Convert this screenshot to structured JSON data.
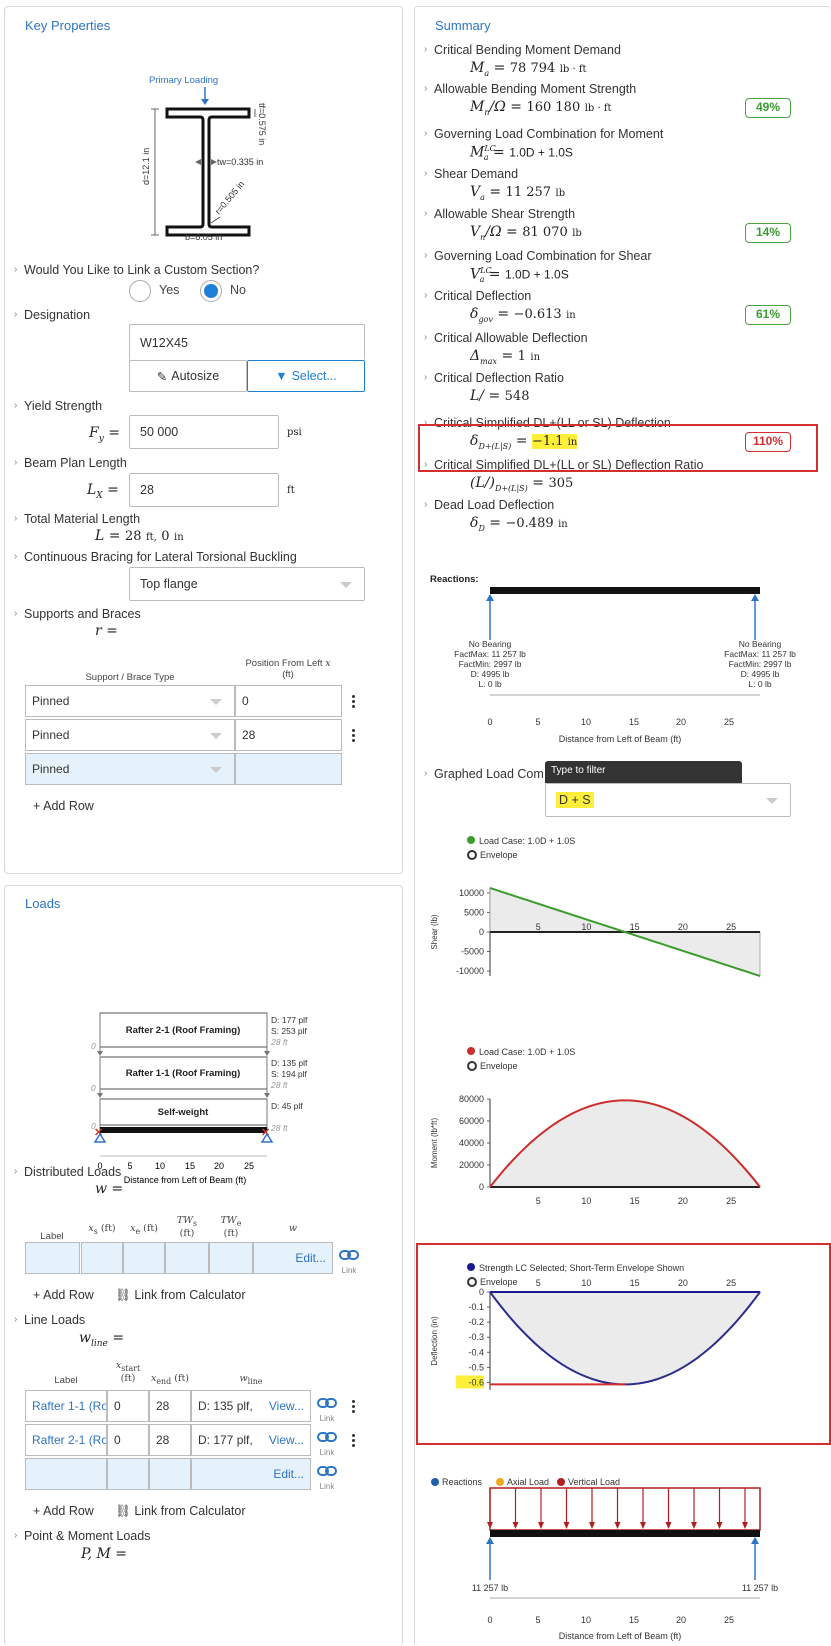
{
  "key_properties": {
    "title": "Key Properties",
    "section_diagram": {
      "primary_loading": "Primary Loading",
      "tf": "tf=0.575 in",
      "tw": "tw=0.335 in",
      "r": "r=0.505 in",
      "d": "d=12.1 in",
      "b": "b=8.05 in"
    },
    "link_custom": {
      "label": "Would You Like to Link a Custom Section?",
      "yes": "Yes",
      "no": "No",
      "selected": "No"
    },
    "designation": {
      "label": "Designation",
      "value": "W12X45",
      "autosize": "Autosize",
      "select": "Select..."
    },
    "yield_strength": {
      "label": "Yield Strength",
      "symbol": "F",
      "sub": "y",
      "value": "50 000",
      "unit": "psi"
    },
    "plan_length": {
      "label": "Beam Plan Length",
      "symbol": "L",
      "sub": "X",
      "value": "28",
      "unit": "ft"
    },
    "material_length": {
      "label": "Total Material Length",
      "symbol": "L",
      "value": "28",
      "u1": "ft,",
      "value2": "0",
      "u2": "in"
    },
    "bracing": {
      "label": "Continuous Bracing for Lateral Torsional Buckling",
      "value": "Top flange"
    },
    "supports": {
      "label": "Supports and Braces",
      "symbol": "r",
      "col_type": "Support / Brace Type",
      "col_pos": "Position From Left",
      "col_pos_var": "x",
      "col_pos_unit": "(ft)",
      "rows": [
        {
          "type": "Pinned",
          "pos": "0"
        },
        {
          "type": "Pinned",
          "pos": "28"
        },
        {
          "type": "Pinned",
          "pos": ""
        }
      ],
      "add_row": "Add Row"
    }
  },
  "loads": {
    "title": "Loads",
    "diagram": {
      "bars": [
        {
          "name": "Rafter 2-1 (Roof Framing)",
          "d": "D: 177 plf",
          "s": "S: 253 plf",
          "len": "28 ft",
          "start": "0"
        },
        {
          "name": "Rafter 1-1 (Roof Framing)",
          "d": "D: 135 plf",
          "s": "S: 194 plf",
          "len": "28 ft",
          "start": "0"
        },
        {
          "name": "Self-weight",
          "d": "D: 45 plf",
          "s": "",
          "len": "28 ft",
          "start": "0"
        }
      ],
      "ticks": [
        "0",
        "5",
        "10",
        "15",
        "20",
        "25"
      ],
      "xlabel": "Distance from Left of Beam (ft)"
    },
    "distributed": {
      "label": "Distributed Loads",
      "symbol": "w",
      "headers": [
        "Label",
        "x",
        "x",
        "TW",
        "TW",
        "w"
      ],
      "subs": [
        "",
        "s",
        "e",
        "s",
        "e",
        ""
      ],
      "units": [
        "",
        "(ft)",
        "(ft)",
        "(ft)",
        "(ft)",
        ""
      ],
      "edit": "Edit...",
      "link": "Link",
      "add_row": "Add Row",
      "calc": "Link from Calculator"
    },
    "line": {
      "label": "Line Loads",
      "symbol": "w",
      "sub": "line",
      "headers": [
        "Label",
        "x",
        "x",
        "w"
      ],
      "subs": [
        "",
        "start",
        "end",
        "line"
      ],
      "units": [
        "",
        "(ft)",
        "(ft)",
        ""
      ],
      "rows": [
        {
          "label": "Rafter 1-1 (Ro",
          "xs": "0",
          "xe": "28",
          "w": "D: 135 plf,",
          "action": "View..."
        },
        {
          "label": "Rafter 2-1 (Ro",
          "xs": "0",
          "xe": "28",
          "w": "D: 177 plf,",
          "action": "View..."
        }
      ],
      "edit": "Edit...",
      "link": "Link",
      "add_row": "Add Row",
      "calc": "Link from Calculator"
    },
    "point": {
      "label": "Point & Moment Loads",
      "symbol": "P, M"
    }
  },
  "summary": {
    "title": "Summary",
    "items": [
      {
        "label": "Critical Bending Moment Demand",
        "lhs": "M",
        "sub": "a",
        "sup": "",
        "val": "78 794",
        "unit": "lb · ft",
        "pct": "",
        "pct_color": ""
      },
      {
        "label": "Allowable Bending Moment Strength",
        "lhs": "M",
        "sub": "n",
        "sup": "",
        "extra": "/Ω",
        "val": "160 180",
        "unit": "lb · ft",
        "pct": "49%",
        "pct_color": "green"
      },
      {
        "label": "Governing Load Combination for Moment",
        "lhs": "M",
        "sub": "a",
        "sup": "LC",
        "val": "1.0D + 1.0S",
        "unit": "",
        "pct": "",
        "pct_color": ""
      },
      {
        "label": "Shear Demand",
        "lhs": "V",
        "sub": "a",
        "sup": "",
        "val": "11 257",
        "unit": "lb",
        "pct": "",
        "pct_color": ""
      },
      {
        "label": "Allowable Shear Strength",
        "lhs": "V",
        "sub": "n",
        "sup": "",
        "extra": "/Ω",
        "val": "81 070",
        "unit": "lb",
        "pct": "14%",
        "pct_color": "green"
      },
      {
        "label": "Governing Load Combination for Shear",
        "lhs": "V",
        "sub": "a",
        "sup": "LC",
        "val": "1.0D + 1.0S",
        "unit": "",
        "pct": "",
        "pct_color": ""
      },
      {
        "label": "Critical Deflection",
        "lhs": "δ",
        "sub": "gov",
        "sup": "",
        "val": "−0.613",
        "unit": "in",
        "pct": "61%",
        "pct_color": "green"
      },
      {
        "label": "Critical Allowable Deflection",
        "lhs": "Δ",
        "sub": "max",
        "sup": "",
        "val": "1",
        "unit": "in",
        "pct": "",
        "pct_color": ""
      },
      {
        "label": "Critical Deflection Ratio",
        "lhs": "L",
        "sub": "",
        "sup": "",
        "extra": "/",
        "val": "548",
        "unit": "",
        "pct": "",
        "pct_color": ""
      },
      {
        "label": "Critical Simplified DL+(LL or SL) Deflection",
        "lhs": "δ",
        "sub": "D+(L|S)",
        "sup": "",
        "val": "−1.1",
        "unit": "in",
        "pct": "110%",
        "pct_color": "red"
      },
      {
        "label": "Critical Simplified DL+(LL or SL) Deflection Ratio",
        "lhs": "(L/)",
        "sub": "D+(L|S)",
        "sup": "",
        "val": "305",
        "unit": "",
        "pct": "",
        "pct_color": ""
      },
      {
        "label": "Dead Load Deflection",
        "lhs": "δ",
        "sub": "D",
        "sup": "",
        "val": "−0.489",
        "unit": "in",
        "pct": "",
        "pct_color": ""
      }
    ],
    "reactions": {
      "title": "Reactions:",
      "left": [
        "No Bearing",
        "FactMax: 11 257 lb",
        "FactMin: 2997 lb",
        "D: 4995 lb",
        "L: 0 lb"
      ],
      "right": [
        "No Bearing",
        "FactMax: 11 257 lb",
        "FactMin: 2997 lb",
        "D: 4995 lb",
        "L: 0 lb"
      ],
      "ticks": [
        "0",
        "5",
        "10",
        "15",
        "20",
        "25"
      ],
      "xlabel": "Distance from Left of Beam (ft)"
    },
    "graphed": {
      "label": "Graphed Load Com",
      "tooltip": "Type to filter",
      "value": "D + S"
    }
  },
  "chart_data": [
    {
      "type": "line",
      "legend": [
        "Load Case: 1.0D + 1.0S",
        "Envelope"
      ],
      "ylabel": "Shear (lb)",
      "xlabel": "",
      "x": [
        0,
        28
      ],
      "series": [
        {
          "name": "Load Case: 1.0D + 1.0S",
          "values": [
            11257,
            -11257
          ]
        }
      ],
      "yticks": [
        "10000",
        "5000",
        "0",
        "-5000",
        "-10000"
      ],
      "xticks": [
        "5",
        "10",
        "15",
        "20",
        "25"
      ],
      "ylim": [
        -11257,
        11257
      ],
      "color": "#3a9c2a"
    },
    {
      "type": "line",
      "legend": [
        "Load Case: 1.0D + 1.0S",
        "Envelope"
      ],
      "ylabel": "Moment (lb*ft)",
      "xlabel": "",
      "x": [
        0,
        14,
        28
      ],
      "series": [
        {
          "name": "Load Case: 1.0D + 1.0S",
          "values": [
            0,
            78794,
            0
          ]
        }
      ],
      "yticks": [
        "80000",
        "60000",
        "40000",
        "20000",
        "0"
      ],
      "xticks": [
        "5",
        "10",
        "15",
        "20",
        "25"
      ],
      "ylim": [
        0,
        80000
      ],
      "color": "#cc2d2d"
    },
    {
      "type": "line",
      "legend": [
        "Strength LC Selected; Short-Term Envelope Shown",
        "Envelope"
      ],
      "ylabel": "Deflection (in)",
      "xlabel": "",
      "x": [
        0,
        14,
        28
      ],
      "series": [
        {
          "name": "Envelope",
          "values": [
            0,
            -0.613,
            0
          ]
        }
      ],
      "yticks": [
        "0",
        "-0.1",
        "-0.2",
        "-0.3",
        "-0.4",
        "-0.5",
        "-0.6"
      ],
      "xticks": [
        "5",
        "10",
        "15",
        "20",
        "25"
      ],
      "highlight": "-0.6",
      "ylim": [
        -0.65,
        0
      ],
      "color": "#2c2c8c"
    }
  ],
  "load_diagram": {
    "legend": [
      "Reactions",
      "Axial Load",
      "Vertical Load"
    ],
    "left_reaction": "11 257 lb",
    "right_reaction": "11 257 lb",
    "ticks": [
      "0",
      "5",
      "10",
      "15",
      "20",
      "25"
    ],
    "xlabel": "Distance from Left of Beam (ft)"
  }
}
